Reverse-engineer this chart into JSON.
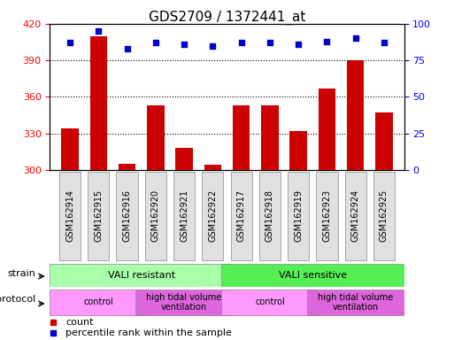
{
  "title": "GDS2709 / 1372441_at",
  "samples": [
    "GSM162914",
    "GSM162915",
    "GSM162916",
    "GSM162920",
    "GSM162921",
    "GSM162922",
    "GSM162917",
    "GSM162918",
    "GSM162919",
    "GSM162923",
    "GSM162924",
    "GSM162925"
  ],
  "counts": [
    334,
    410,
    305,
    353,
    318,
    304,
    353,
    353,
    332,
    367,
    390,
    347
  ],
  "percentiles": [
    87,
    95,
    83,
    87,
    86,
    85,
    87,
    87,
    86,
    88,
    90,
    87
  ],
  "ylim_left": [
    300,
    420
  ],
  "ylim_right": [
    0,
    100
  ],
  "yticks_left": [
    300,
    330,
    360,
    390,
    420
  ],
  "yticks_right": [
    0,
    25,
    50,
    75,
    100
  ],
  "bar_color": "#cc0000",
  "dot_color": "#0000cc",
  "bg_color": "#ffffff",
  "strain_groups": [
    {
      "label": "VALI resistant",
      "start": 0,
      "end": 6,
      "color": "#aaffaa"
    },
    {
      "label": "VALI sensitive",
      "start": 6,
      "end": 12,
      "color": "#55ee55"
    }
  ],
  "protocol_groups": [
    {
      "label": "control",
      "start": 0,
      "end": 3,
      "color": "#ff99ff"
    },
    {
      "label": "high tidal volume\nventilation",
      "start": 3,
      "end": 6,
      "color": "#dd66dd"
    },
    {
      "label": "control",
      "start": 6,
      "end": 9,
      "color": "#ff99ff"
    },
    {
      "label": "high tidal volume\nventilation",
      "start": 9,
      "end": 12,
      "color": "#dd66dd"
    }
  ],
  "legend_count_label": "count",
  "legend_pct_label": "percentile rank within the sample",
  "title_fontsize": 11,
  "tick_fontsize": 8,
  "sample_fontsize": 7
}
